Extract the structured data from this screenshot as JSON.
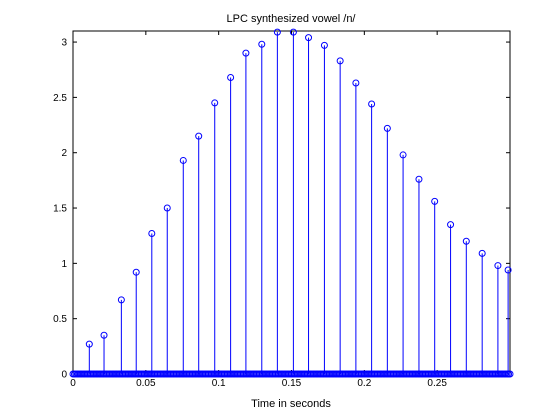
{
  "chart_data": {
    "type": "stem",
    "title": "LPC synthesized vowel /n/",
    "xlabel": "Time in seconds",
    "ylabel": "",
    "xlim": [
      0,
      0.3
    ],
    "ylim": [
      0,
      3.1
    ],
    "xticks": [
      0,
      0.05,
      0.1,
      0.15,
      0.2,
      0.25
    ],
    "xtick_labels": [
      "0",
      "0.05",
      "0.1",
      "0.15",
      "0.2",
      "0.25"
    ],
    "yticks": [
      0,
      0.5,
      1,
      1.5,
      2,
      2.5,
      3
    ],
    "ytick_labels": [
      "0",
      "0.5",
      "1",
      "1.5",
      "2",
      "2.5",
      "3"
    ],
    "marker": "circle",
    "color": "#0000ff",
    "grid": false,
    "x": [
      0.0112,
      0.0213,
      0.0332,
      0.0434,
      0.0541,
      0.0647,
      0.0757,
      0.0863,
      0.0973,
      0.1082,
      0.1187,
      0.1296,
      0.1403,
      0.1513,
      0.1617,
      0.1726,
      0.1834,
      0.1942,
      0.205,
      0.2158,
      0.2266,
      0.2375,
      0.2483,
      0.2592,
      0.27,
      0.2809,
      0.2917,
      0.2987
    ],
    "y": [
      0.27,
      0.35,
      0.67,
      0.92,
      1.27,
      1.5,
      1.93,
      2.15,
      2.45,
      2.68,
      2.9,
      2.98,
      3.09,
      3.09,
      3.04,
      2.97,
      2.83,
      2.63,
      2.44,
      2.22,
      1.98,
      1.76,
      1.56,
      1.35,
      1.2,
      1.09,
      0.98,
      0.94
    ],
    "baseline_samples": 300
  }
}
